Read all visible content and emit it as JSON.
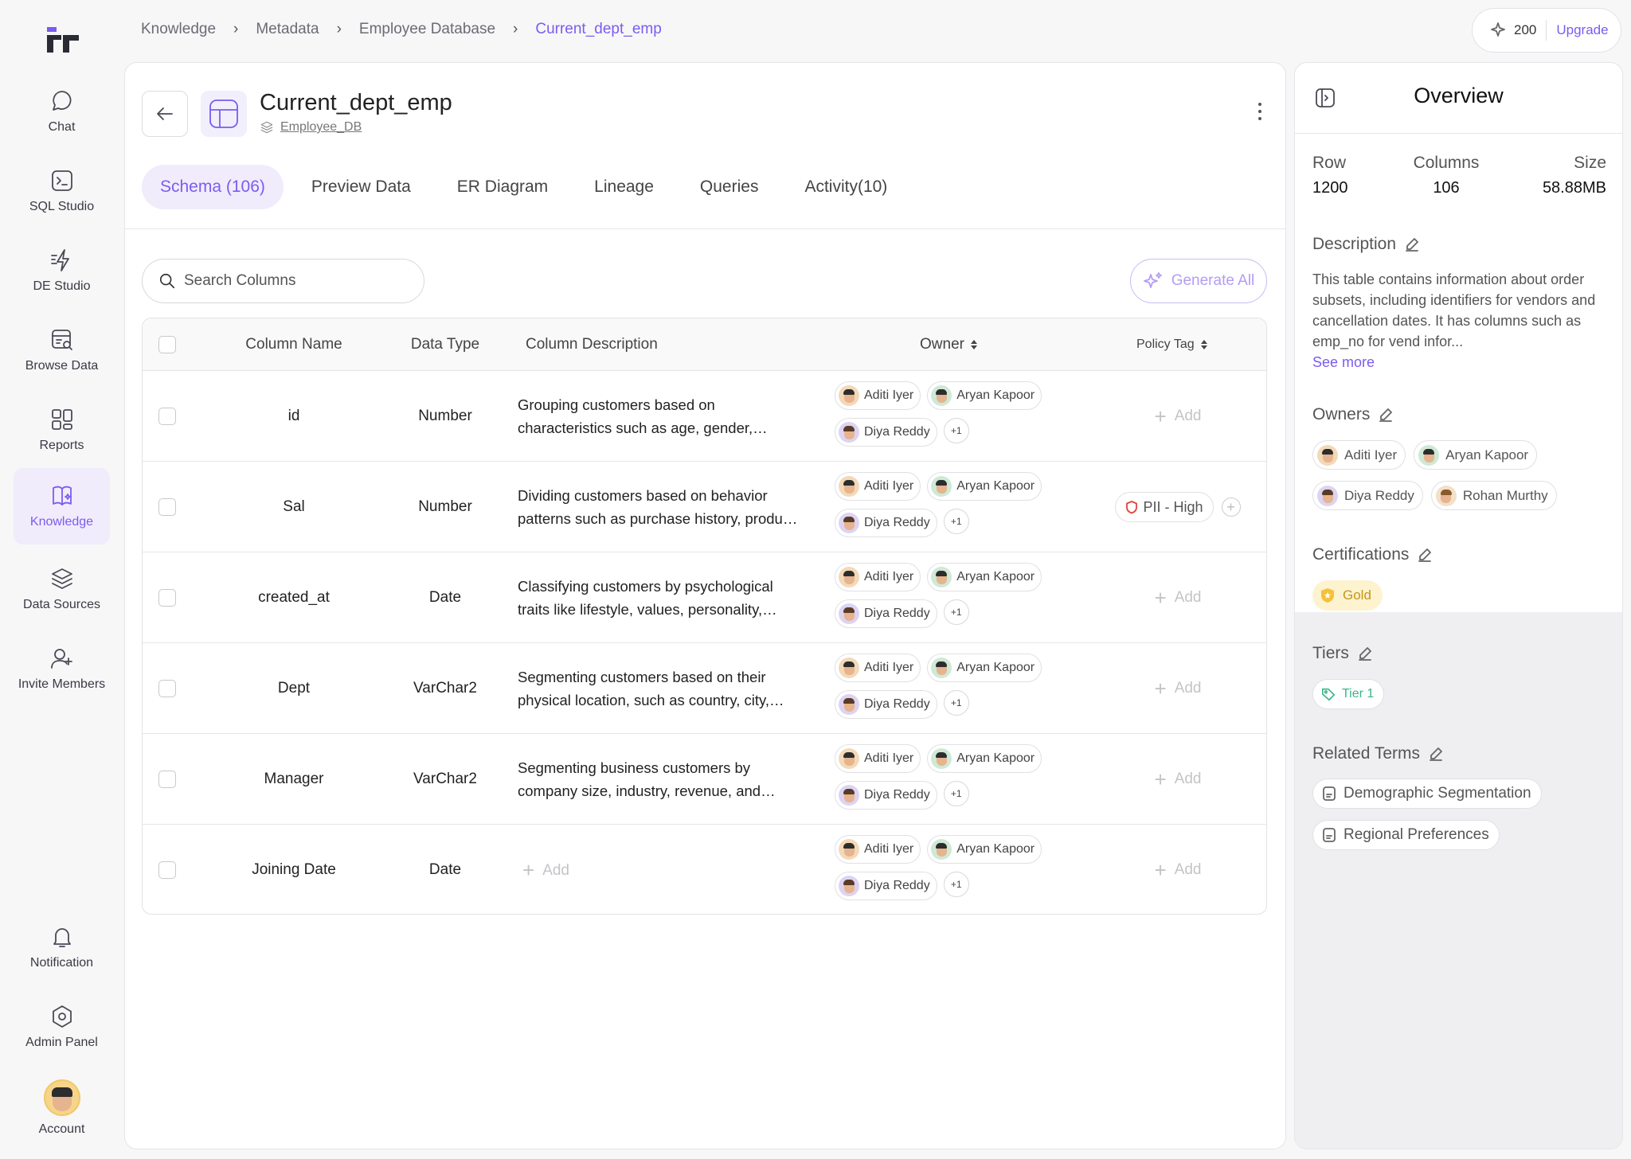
{
  "sidebar": {
    "items": [
      {
        "label": "Chat",
        "icon": "chat-icon"
      },
      {
        "label": "SQL Studio",
        "icon": "terminal-icon"
      },
      {
        "label": "DE Studio",
        "icon": "lightning-icon"
      },
      {
        "label": "Browse Data",
        "icon": "browse-data-icon"
      },
      {
        "label": "Reports",
        "icon": "grid-icon"
      },
      {
        "label": "Knowledge",
        "icon": "book-sparkle-icon"
      },
      {
        "label": "Data Sources",
        "icon": "layers-icon"
      },
      {
        "label": "Invite Members",
        "icon": "user-plus-icon"
      }
    ],
    "bottom": [
      {
        "label": "Notification",
        "icon": "bell-icon"
      },
      {
        "label": "Admin Panel",
        "icon": "hexagon-gear-icon"
      },
      {
        "label": "Account",
        "icon": "avatar"
      }
    ]
  },
  "breadcrumb": [
    "Knowledge",
    "Metadata",
    "Employee Database",
    "Current_dept_emp"
  ],
  "credits": {
    "count": "200",
    "upgrade": "Upgrade"
  },
  "header": {
    "title": "Current_dept_emp",
    "database": "Employee_DB"
  },
  "tabs": [
    "Schema (106)",
    "Preview Data",
    "ER Diagram",
    "Lineage",
    "Queries",
    "Activity(10)"
  ],
  "search": {
    "placeholder": "Search Columns"
  },
  "generate_all": "Generate All",
  "table": {
    "headers": {
      "name": "Column Name",
      "type": "Data Type",
      "desc": "Column Description",
      "owner": "Owner",
      "policy": "Policy Tag"
    },
    "add_label": "Add",
    "owners": [
      "Aditi Iyer",
      "Aryan Kapoor",
      "Diya Reddy"
    ],
    "more_owners": "+1",
    "rows": [
      {
        "name": "id",
        "type": "Number",
        "desc": "Grouping customers based on characteristics such as age, gender, income, education and other demographic factors",
        "tag": ""
      },
      {
        "name": "Sal",
        "type": "Number",
        "desc": "Dividing customers based on behavior patterns such as purchase history, product usage and brand loyalty",
        "tag": "PII - High"
      },
      {
        "name": "created_at",
        "type": "Date",
        "desc": "Classifying customers by psychological traits like lifestyle, values, personality, attitudes and interests",
        "tag": ""
      },
      {
        "name": "Dept",
        "type": "VarChar2",
        "desc": "Segmenting customers based on their physical location, such as country, city, region or climate",
        "tag": ""
      },
      {
        "name": "Manager",
        "type": "VarChar2",
        "desc": "Segmenting business customers by company size, industry, revenue, and location of operations",
        "tag": ""
      },
      {
        "name": "Joining Date",
        "type": "Date",
        "desc": "",
        "tag": ""
      }
    ]
  },
  "overview": {
    "title": "Overview",
    "stats": {
      "row_label": "Row",
      "row_value": "1200",
      "columns_label": "Columns",
      "columns_value": "106",
      "size_label": "Size",
      "size_value": "58.88MB"
    },
    "description_label": "Description",
    "description": "This table contains information about order subsets, including identifiers for vendors and cancellation dates. It has columns such as emp_no for vend infor...",
    "see_more": "See more",
    "owners_label": "Owners",
    "owners": [
      "Aditi Iyer",
      "Aryan Kapoor",
      "Diya Reddy",
      "Rohan Murthy"
    ],
    "certifications_label": "Certifications",
    "certification": "Gold",
    "tiers_label": "Tiers",
    "tier": "Tier 1",
    "related_label": "Related Terms",
    "related_terms": [
      "Demographic Segmentation",
      "Regional Preferences"
    ]
  },
  "colors": {
    "accent": "#7b5cf0",
    "gold": "#f5c13a",
    "tier": "#3bb48a",
    "pii": "#e0443a"
  }
}
